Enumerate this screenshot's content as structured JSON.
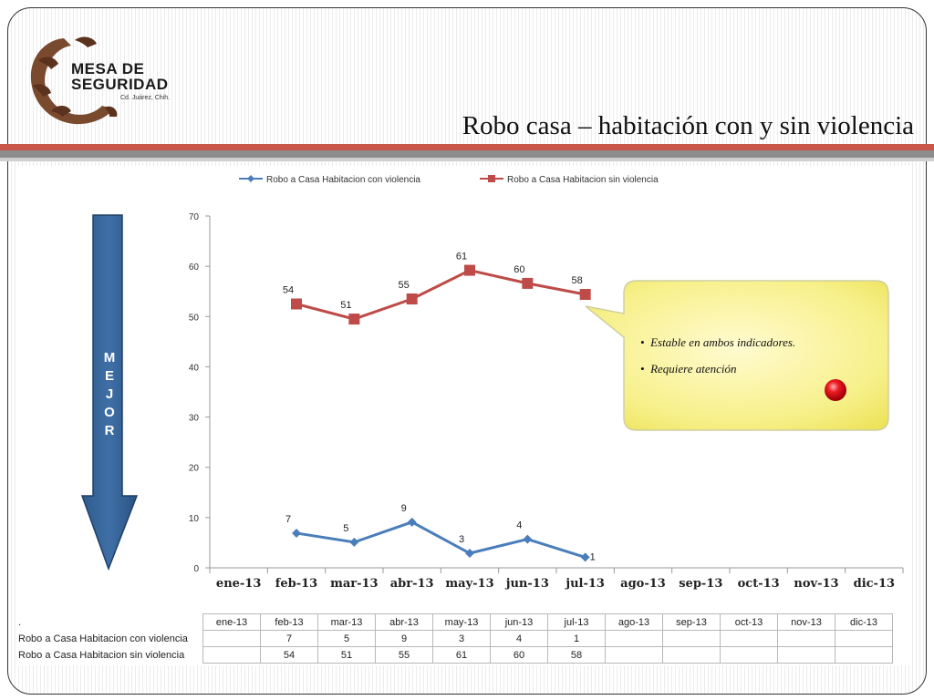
{
  "slide": {
    "title": "Robo casa – habitación con y sin violencia",
    "logo": {
      "line1": "MESA DE",
      "line2": "SEGURIDAD",
      "line3": "Cd. Juárez, Chih."
    },
    "arrow_label": [
      "M",
      "E",
      "J",
      "O",
      "R"
    ],
    "callout": {
      "bullets": [
        "Estable en ambos indicadores.",
        "Requiere atención"
      ],
      "indicator_color": "#e0141e"
    },
    "table_corner": "."
  },
  "chart_data": {
    "type": "line",
    "categories": [
      "ene-13",
      "feb-13",
      "mar-13",
      "abr-13",
      "may-13",
      "jun-13",
      "jul-13",
      "ago-13",
      "sep-13",
      "oct-13",
      "nov-13",
      "dic-13"
    ],
    "ylim": [
      0,
      70
    ],
    "yticks": [
      0,
      10,
      20,
      30,
      40,
      50,
      60,
      70
    ],
    "legend_position": "top",
    "series": [
      {
        "name": "Robo a Casa Habitacion con violencia",
        "color": "#4a7ebb",
        "marker": "diamond",
        "values": [
          null,
          7,
          5,
          9,
          3,
          4,
          1,
          null,
          null,
          null,
          null,
          null
        ],
        "plot_values": [
          null,
          6.9,
          5.1,
          9.1,
          2.9,
          5.7,
          2.1,
          null,
          null,
          null,
          null,
          null
        ]
      },
      {
        "name": "Robo a Casa Habitacion sin violencia",
        "color": "#be4b48",
        "marker": "square",
        "values": [
          null,
          54,
          51,
          55,
          61,
          60,
          58,
          null,
          null,
          null,
          null,
          null
        ],
        "plot_values": [
          null,
          52.5,
          49.5,
          53.5,
          59.2,
          56.6,
          54.4,
          null,
          null,
          null,
          null,
          null
        ]
      }
    ]
  }
}
